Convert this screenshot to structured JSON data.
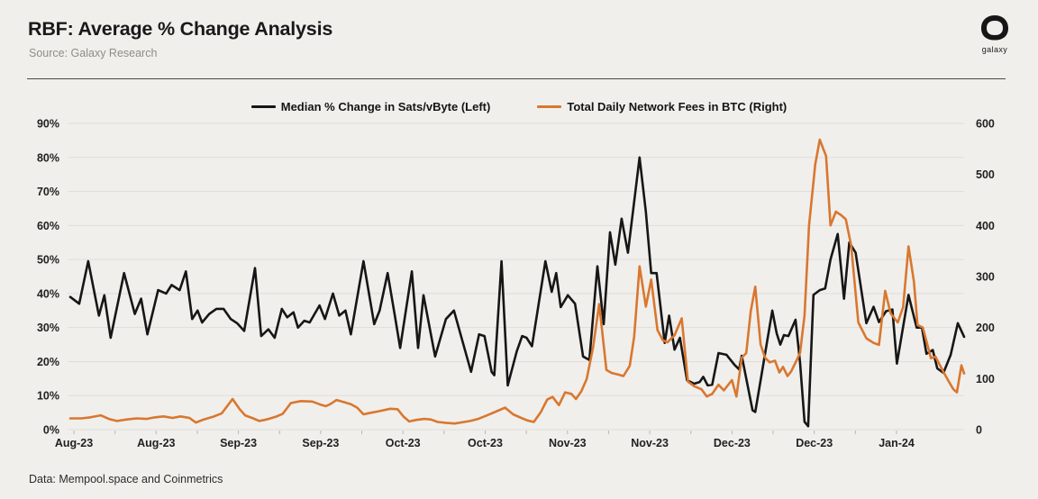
{
  "header": {
    "title": "RBF: Average % Change Analysis",
    "source": "Source: Galaxy Research",
    "logo_text": "galaxy"
  },
  "footer": {
    "text": "Data: Mempool.space and Coinmetrics"
  },
  "colors": {
    "background": "#f0efec",
    "grid": "#e0deda",
    "axis_text": "#212121",
    "median_line": "#161616",
    "fees_line": "#d9772f",
    "rule": "#4a4a48",
    "tick": "#b9b7b3"
  },
  "chart_data": {
    "type": "line",
    "title": "RBF: Average % Change Analysis",
    "legend_position": "top",
    "grid": "horizontal",
    "x_axis": {
      "range_note": "Aug-23 to Jan-24, x stored as percent position along axis",
      "tick_labels": [
        "Aug-23",
        "Aug-23",
        "Sep-23",
        "Sep-23",
        "Oct-23",
        "Oct-23",
        "Nov-23",
        "Nov-23",
        "Dec-23",
        "Dec-23",
        "Jan-24"
      ]
    },
    "left_axis": {
      "min": 0,
      "max": 90,
      "tick_labels": [
        "0%",
        "10%",
        "20%",
        "30%",
        "40%",
        "50%",
        "60%",
        "70%",
        "80%",
        "90%"
      ]
    },
    "right_axis": {
      "min": 0,
      "max": 600,
      "tick_labels": [
        "0",
        "100",
        "200",
        "300",
        "400",
        "500",
        "600"
      ]
    },
    "legend": [
      {
        "label": "Median % Change in Sats/vByte (Left)",
        "color": "#161616",
        "axis": "left"
      },
      {
        "label": "Total Daily Network Fees in BTC (Right)",
        "color": "#d9772f",
        "axis": "right"
      }
    ],
    "series": [
      {
        "name": "Median % Change in Sats/vByte",
        "axis": "left",
        "color": "#161616",
        "points": [
          [
            0.3,
            39
          ],
          [
            1.3,
            37
          ],
          [
            2.3,
            49.5
          ],
          [
            3.5,
            33.5
          ],
          [
            4.1,
            39.5
          ],
          [
            4.8,
            27
          ],
          [
            6.3,
            46
          ],
          [
            7.5,
            34
          ],
          [
            8.2,
            38.5
          ],
          [
            8.9,
            28
          ],
          [
            10.1,
            41
          ],
          [
            11,
            40
          ],
          [
            11.6,
            42.5
          ],
          [
            12.5,
            41
          ],
          [
            13.2,
            46.5
          ],
          [
            13.9,
            32.5
          ],
          [
            14.5,
            35
          ],
          [
            15,
            31.5
          ],
          [
            15.8,
            34
          ],
          [
            16.6,
            35.5
          ],
          [
            17.4,
            35.5
          ],
          [
            18.2,
            32.5
          ],
          [
            18.9,
            31.3
          ],
          [
            19.7,
            29
          ],
          [
            20.9,
            47.5
          ],
          [
            21.6,
            27.5
          ],
          [
            22.4,
            29.5
          ],
          [
            23.1,
            27
          ],
          [
            23.9,
            35.5
          ],
          [
            24.5,
            33
          ],
          [
            25.2,
            34.5
          ],
          [
            25.7,
            30
          ],
          [
            26.4,
            32
          ],
          [
            27,
            31.5
          ],
          [
            28.1,
            36.5
          ],
          [
            28.7,
            32.5
          ],
          [
            29.6,
            40
          ],
          [
            30.3,
            33.5
          ],
          [
            31,
            35
          ],
          [
            31.6,
            28
          ],
          [
            33,
            49.5
          ],
          [
            34.2,
            31
          ],
          [
            34.8,
            35
          ],
          [
            35.7,
            46
          ],
          [
            36.5,
            33.5
          ],
          [
            37.1,
            24
          ],
          [
            38.4,
            46.5
          ],
          [
            39.1,
            24
          ],
          [
            39.7,
            39.5
          ],
          [
            41,
            21.5
          ],
          [
            42.2,
            32.5
          ],
          [
            43.1,
            35
          ],
          [
            44.1,
            25.5
          ],
          [
            45,
            17
          ],
          [
            45.9,
            28
          ],
          [
            46.5,
            27.5
          ],
          [
            47.3,
            17
          ],
          [
            47.6,
            16
          ],
          [
            48.4,
            49.5
          ],
          [
            49.1,
            13
          ],
          [
            50.1,
            23
          ],
          [
            50.7,
            27.5
          ],
          [
            51.2,
            27
          ],
          [
            51.8,
            24.5
          ],
          [
            53.3,
            49.5
          ],
          [
            54,
            40.5
          ],
          [
            54.5,
            46
          ],
          [
            55,
            36
          ],
          [
            55.8,
            39.5
          ],
          [
            56.6,
            37
          ],
          [
            57.5,
            21.5
          ],
          [
            58.2,
            20.5
          ],
          [
            59.1,
            48
          ],
          [
            59.8,
            31
          ],
          [
            60.5,
            58
          ],
          [
            61.1,
            48.5
          ],
          [
            61.8,
            62
          ],
          [
            62.5,
            52
          ],
          [
            63.8,
            80
          ],
          [
            64.5,
            64
          ],
          [
            65.1,
            46
          ],
          [
            65.7,
            46
          ],
          [
            66.6,
            25.5
          ],
          [
            67.1,
            33.5
          ],
          [
            67.7,
            23.5
          ],
          [
            68.3,
            27
          ],
          [
            69.1,
            14.5
          ],
          [
            69.9,
            13.5
          ],
          [
            70.5,
            14
          ],
          [
            70.9,
            15.5
          ],
          [
            71.4,
            13
          ],
          [
            71.9,
            13.2
          ],
          [
            72.6,
            22.5
          ],
          [
            73.5,
            22
          ],
          [
            74.4,
            19
          ],
          [
            74.9,
            17.7
          ],
          [
            75.2,
            21.7
          ],
          [
            76.4,
            5.7
          ],
          [
            76.7,
            5.2
          ],
          [
            77.4,
            16
          ],
          [
            78.6,
            35
          ],
          [
            79.1,
            28.3
          ],
          [
            79.5,
            25
          ],
          [
            79.9,
            27.8
          ],
          [
            80.4,
            27.5
          ],
          [
            81.2,
            32.3
          ],
          [
            81.7,
            19.8
          ],
          [
            82.2,
            2.3
          ],
          [
            82.6,
            1
          ],
          [
            83.2,
            39.6
          ],
          [
            83.9,
            41
          ],
          [
            84.5,
            41.5
          ],
          [
            85.1,
            50
          ],
          [
            85.9,
            57.5
          ],
          [
            86.6,
            38.5
          ],
          [
            87.2,
            55
          ],
          [
            87.9,
            52
          ],
          [
            89.1,
            31.3
          ],
          [
            89.9,
            36.1
          ],
          [
            90.5,
            31.6
          ],
          [
            91.3,
            34.8
          ],
          [
            92,
            35.3
          ],
          [
            92.5,
            19.4
          ],
          [
            93.8,
            39.6
          ],
          [
            94.7,
            30
          ],
          [
            95.3,
            30
          ],
          [
            95.8,
            22.3
          ],
          [
            96.5,
            23.4
          ],
          [
            97,
            18
          ],
          [
            97.7,
            16.7
          ],
          [
            98.5,
            22
          ],
          [
            99.3,
            31.3
          ],
          [
            100,
            27.3
          ]
        ]
      },
      {
        "name": "Total Daily Network Fees in BTC",
        "axis": "right",
        "color": "#d9772f",
        "points": [
          [
            0.3,
            22
          ],
          [
            1.5,
            22
          ],
          [
            2.5,
            24
          ],
          [
            3.7,
            28
          ],
          [
            4.6,
            21
          ],
          [
            5.5,
            17
          ],
          [
            6.6,
            20
          ],
          [
            7.7,
            22
          ],
          [
            8.8,
            21
          ],
          [
            9.7,
            24
          ],
          [
            10.7,
            26
          ],
          [
            11.7,
            23
          ],
          [
            12.6,
            26
          ],
          [
            13.6,
            23
          ],
          [
            14.3,
            14
          ],
          [
            15.2,
            20
          ],
          [
            16.2,
            25
          ],
          [
            17.2,
            32
          ],
          [
            18.4,
            60
          ],
          [
            19.2,
            40
          ],
          [
            19.8,
            28
          ],
          [
            20.7,
            22
          ],
          [
            21.4,
            17
          ],
          [
            22.2,
            20
          ],
          [
            23.2,
            25
          ],
          [
            24,
            31
          ],
          [
            24.9,
            52
          ],
          [
            26,
            56
          ],
          [
            27.3,
            55
          ],
          [
            28.2,
            49
          ],
          [
            28.8,
            46
          ],
          [
            29.3,
            50
          ],
          [
            30,
            58
          ],
          [
            30.8,
            54
          ],
          [
            31.6,
            50
          ],
          [
            32.3,
            43
          ],
          [
            33,
            30
          ],
          [
            33.8,
            33
          ],
          [
            34.7,
            36
          ],
          [
            36,
            41
          ],
          [
            36.8,
            40
          ],
          [
            37.5,
            25
          ],
          [
            38.1,
            16
          ],
          [
            38.9,
            19
          ],
          [
            39.8,
            21
          ],
          [
            40.5,
            20
          ],
          [
            41.3,
            15
          ],
          [
            42.3,
            13
          ],
          [
            43.2,
            12
          ],
          [
            44.2,
            15
          ],
          [
            44.9,
            17
          ],
          [
            45.8,
            21
          ],
          [
            46.8,
            28
          ],
          [
            48,
            37
          ],
          [
            48.8,
            43
          ],
          [
            49.7,
            30
          ],
          [
            50.6,
            23
          ],
          [
            51.3,
            18
          ],
          [
            52,
            15
          ],
          [
            52.8,
            35
          ],
          [
            53.5,
            59
          ],
          [
            54.1,
            64
          ],
          [
            54.8,
            48
          ],
          [
            55.5,
            73
          ],
          [
            56.2,
            70
          ],
          [
            56.7,
            60
          ],
          [
            57.3,
            75
          ],
          [
            57.9,
            99
          ],
          [
            58.6,
            160
          ],
          [
            59.3,
            246
          ],
          [
            60.1,
            117
          ],
          [
            60.7,
            111
          ],
          [
            61.4,
            108
          ],
          [
            62,
            105
          ],
          [
            62.7,
            125
          ],
          [
            63.2,
            182
          ],
          [
            63.8,
            320
          ],
          [
            64.5,
            241
          ],
          [
            65.1,
            294
          ],
          [
            65.8,
            195
          ],
          [
            66.4,
            175
          ],
          [
            66.9,
            171
          ],
          [
            67.7,
            185
          ],
          [
            68.5,
            218
          ],
          [
            69.2,
            94
          ],
          [
            69.9,
            85
          ],
          [
            70.7,
            79
          ],
          [
            71.3,
            65
          ],
          [
            71.9,
            70
          ],
          [
            72.6,
            88
          ],
          [
            73.2,
            77
          ],
          [
            74.1,
            97
          ],
          [
            74.6,
            65
          ],
          [
            75.2,
            141
          ],
          [
            75.7,
            150
          ],
          [
            76.2,
            232
          ],
          [
            76.7,
            280
          ],
          [
            77.3,
            167
          ],
          [
            77.8,
            141
          ],
          [
            78.3,
            132
          ],
          [
            78.9,
            135
          ],
          [
            79.4,
            112
          ],
          [
            79.8,
            123
          ],
          [
            80.3,
            105
          ],
          [
            80.7,
            114
          ],
          [
            81.3,
            135
          ],
          [
            81.7,
            150
          ],
          [
            82.2,
            224
          ],
          [
            82.7,
            400
          ],
          [
            83.4,
            520
          ],
          [
            83.9,
            568
          ],
          [
            84.6,
            536
          ],
          [
            85.1,
            400
          ],
          [
            85.7,
            427
          ],
          [
            86.3,
            420
          ],
          [
            86.8,
            412
          ],
          [
            87.4,
            361
          ],
          [
            88.2,
            210
          ],
          [
            89.1,
            179
          ],
          [
            89.9,
            170
          ],
          [
            90.5,
            166
          ],
          [
            91.2,
            272
          ],
          [
            91.8,
            228
          ],
          [
            92.6,
            210
          ],
          [
            93.2,
            240
          ],
          [
            93.8,
            359
          ],
          [
            94.4,
            290
          ],
          [
            94.8,
            205
          ],
          [
            95.4,
            200
          ],
          [
            96,
            160
          ],
          [
            96.3,
            140
          ],
          [
            96.8,
            143
          ],
          [
            97.7,
            113
          ],
          [
            98.3,
            94
          ],
          [
            98.8,
            79
          ],
          [
            99.2,
            73
          ],
          [
            99.7,
            126
          ],
          [
            100,
            110
          ]
        ]
      }
    ]
  }
}
